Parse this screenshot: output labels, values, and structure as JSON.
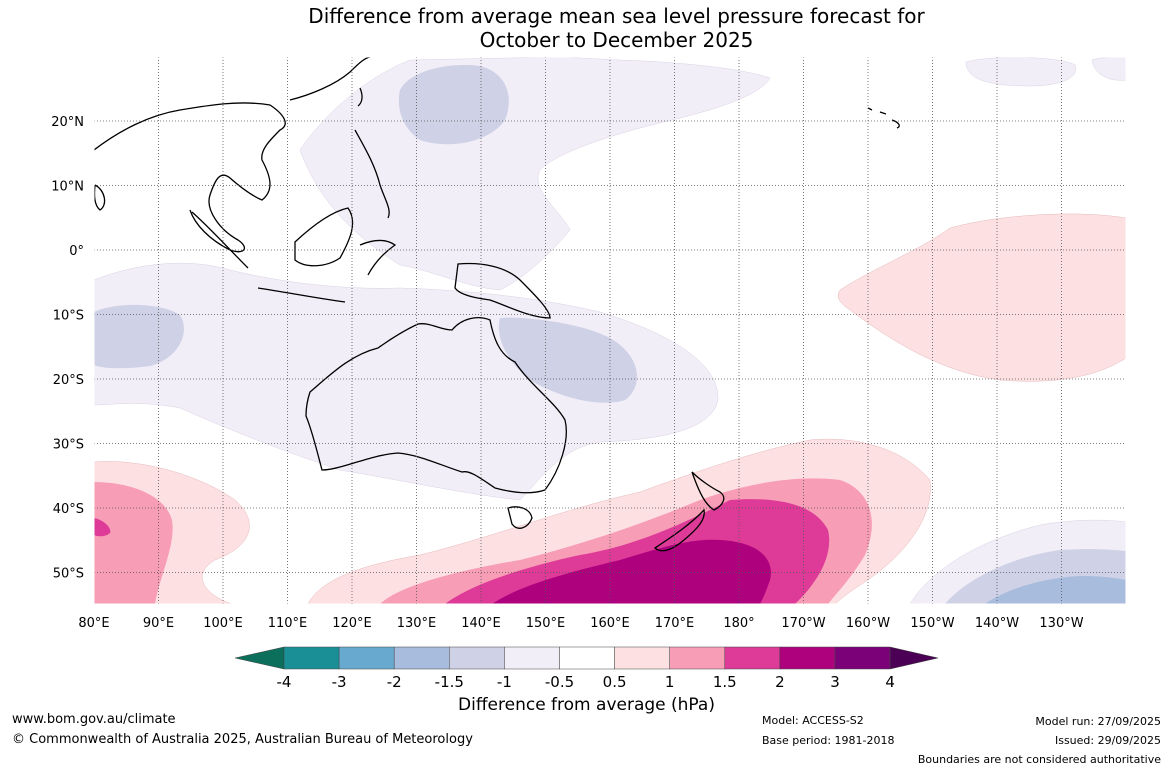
{
  "title": {
    "line1": "Difference from average mean sea level pressure forecast for",
    "line2": "October to December 2025"
  },
  "map": {
    "lat_labels": [
      "20°N",
      "10°N",
      "0°",
      "10°S",
      "20°S",
      "30°S",
      "40°S",
      "50°S"
    ],
    "lon_labels": [
      "80°E",
      "90°E",
      "100°E",
      "110°E",
      "120°E",
      "130°E",
      "140°E",
      "150°E",
      "160°E",
      "170°E",
      "180°",
      "170°W",
      "160°W",
      "150°W",
      "140°W",
      "130°W"
    ],
    "extent": {
      "lon_min": 80,
      "lon_max": 240,
      "lat_min": -55,
      "lat_max": 30
    },
    "gridlines": true
  },
  "colorbar": {
    "title": "Difference from average (hPa)",
    "ticks": [
      "-4",
      "-3",
      "-2",
      "-1.5",
      "-1",
      "-0.5",
      "0.5",
      "1",
      "1.5",
      "2",
      "3",
      "4"
    ],
    "colors": [
      "#0b6f5c",
      "#1a9096",
      "#67a9cf",
      "#a8bcdd",
      "#cfd1e6",
      "#f2eef7",
      "#ffffff",
      "#fde1e2",
      "#f79db6",
      "#de3a97",
      "#ae017e",
      "#7a0177",
      "#4b0055"
    ]
  },
  "footer": {
    "website": "www.bom.gov.au/climate",
    "copyright": "© Commonwealth of Australia 2025, Australian Bureau of Meteorology",
    "model": "Model: ACCESS-S2",
    "base_period": "Base period: 1981-2018",
    "model_run": "Model run: 27/09/2025",
    "issued": "Issued: 29/09/2025",
    "disclaimer": "Boundaries are not considered authoritative"
  }
}
